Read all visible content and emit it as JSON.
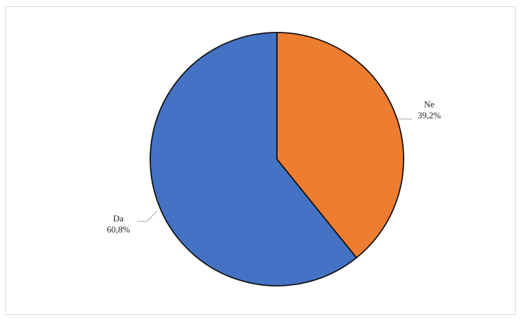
{
  "chart_data": {
    "type": "pie",
    "title": "",
    "slices": [
      {
        "label": "Ne",
        "value": 39.2,
        "value_label": "39,2%",
        "color": "#ED7D31"
      },
      {
        "label": "Da",
        "value": 60.8,
        "value_label": "60,8%",
        "color": "#4472C4"
      }
    ],
    "start_angle": "12 o'clock",
    "direction": "clockwise",
    "legend": "none",
    "labels": "outside with leader lines"
  }
}
